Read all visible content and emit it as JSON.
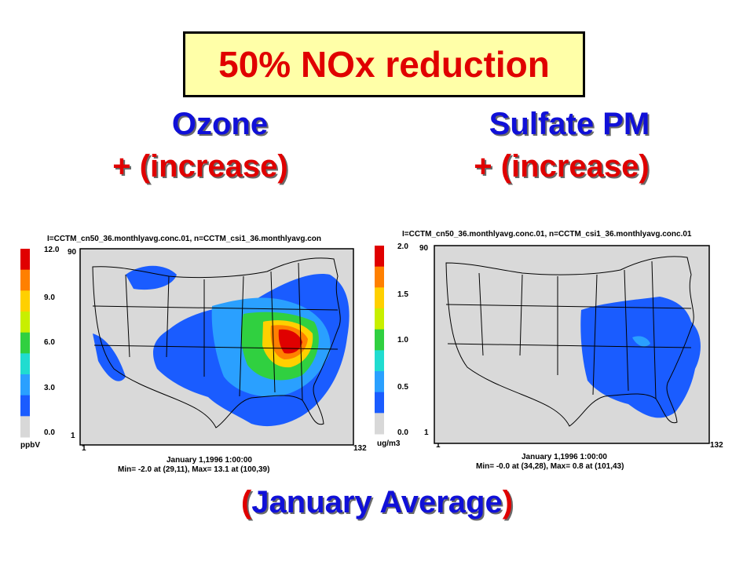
{
  "title": "50% NOx reduction",
  "headings": {
    "left_line1": "Ozone",
    "left_line2": "+ (increase)",
    "right_line1": "Sulfate PM",
    "right_line2": "+ (increase)"
  },
  "footer": {
    "open": "(",
    "text": "January Average",
    "close": ")"
  },
  "maps": [
    {
      "header": "I=CCTM_cn50_36.monthlyavg.conc.01, n=CCTM_csi1_36.monthlyavg.con",
      "scale_labels": [
        "12.0",
        "9.0",
        "6.0",
        "3.0",
        "0.0"
      ],
      "unit": "ppbV",
      "y_top": "90",
      "y_bottom": "1",
      "x_left": "1",
      "x_right": "132",
      "date": "January 1,1996 1:00:00",
      "stats": "Min=   -2.0 at (29,11), Max=   13.1 at (100,39)"
    },
    {
      "header": "I=CCTM_cn50_36.monthlyavg.conc.01, n=CCTM_csi1_36.monthlyavg.conc.01",
      "scale_labels": [
        "2.0",
        "1.5",
        "1.0",
        "0.5",
        "0.0"
      ],
      "unit": "ug/m3",
      "y_top": "90",
      "y_bottom": "1",
      "x_left": "1",
      "x_right": "132",
      "date": "January 1,1996 1:00:00",
      "stats": "Min=   -0.0 at (34,28), Max=    0.8 at (101,43)"
    }
  ],
  "colors": {
    "scale": [
      "#d8d8d8",
      "#1a5cff",
      "#2aa0ff",
      "#20dcd0",
      "#30d040",
      "#c8ef00",
      "#ffd000",
      "#ff8000",
      "#e00000"
    ],
    "map_bg": "#d9d9d9"
  }
}
